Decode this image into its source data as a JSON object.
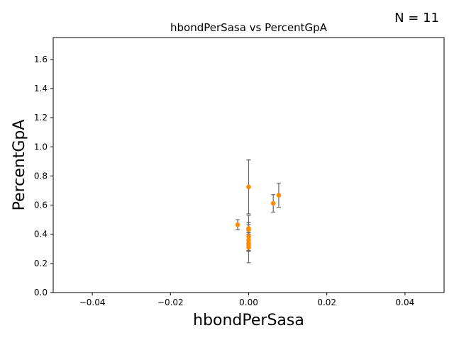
{
  "chart_data": {
    "type": "scatter",
    "title": "hbondPerSasa vs PercentGpA",
    "xlabel": "hbondPerSasa",
    "ylabel": "PercentGpA",
    "annotation": "N = 11",
    "xlim": [
      -0.05,
      0.05
    ],
    "ylim": [
      0.0,
      1.75
    ],
    "xticks": [
      -0.04,
      -0.02,
      0.0,
      0.02,
      0.04
    ],
    "xtick_labels": [
      "−0.04",
      "−0.02",
      "0.00",
      "0.02",
      "0.04"
    ],
    "yticks": [
      0.0,
      0.2,
      0.4,
      0.6,
      0.8,
      1.0,
      1.2,
      1.4,
      1.6
    ],
    "ytick_labels": [
      "0.0",
      "0.2",
      "0.4",
      "0.6",
      "0.8",
      "1.0",
      "1.2",
      "1.4",
      "1.6"
    ],
    "grid": false,
    "point_color": "#ff8c00",
    "errorbar_color": "#666666",
    "points": [
      {
        "x": -0.0028,
        "y": 0.465,
        "err": 0.035
      },
      {
        "x": 0.0,
        "y": 0.725,
        "err": 0.185
      },
      {
        "x": 0.0,
        "y": 0.44,
        "err": 0.04
      },
      {
        "x": 0.0,
        "y": 0.43,
        "err": 0.1
      },
      {
        "x": 0.0,
        "y": 0.385,
        "err": 0.08
      },
      {
        "x": 0.0,
        "y": 0.36,
        "err": 0.05
      },
      {
        "x": 0.0,
        "y": 0.34,
        "err": 0.05
      },
      {
        "x": 0.0,
        "y": 0.325,
        "err": 0.12
      },
      {
        "x": 0.0,
        "y": 0.31,
        "err": 0.03
      },
      {
        "x": 0.0063,
        "y": 0.612,
        "err": 0.06
      },
      {
        "x": 0.0077,
        "y": 0.668,
        "err": 0.083
      }
    ]
  }
}
